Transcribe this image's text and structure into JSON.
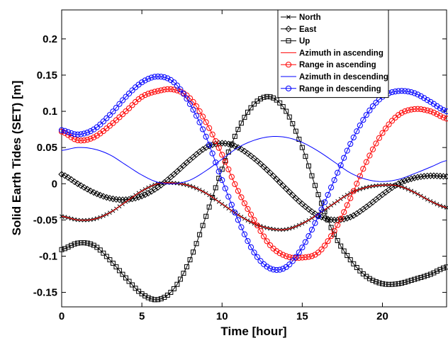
{
  "chart_data": {
    "type": "line",
    "xlabel": "Time [hour]",
    "ylabel": "Solid Earth Tides (SET) [m]",
    "xlim": [
      0,
      24
    ],
    "ylim": [
      -0.17,
      0.24
    ],
    "xticks": [
      0,
      5,
      10,
      15,
      20
    ],
    "yticks": [
      -0.15,
      -0.1,
      -0.05,
      0,
      0.05,
      0.1,
      0.15,
      0.2
    ],
    "grid": false,
    "legend_position": "top-right",
    "series": [
      {
        "name": "North",
        "color": "#000000",
        "marker": "x",
        "x": [
          0,
          1,
          2,
          3,
          4,
          5,
          6,
          7,
          8,
          9,
          10,
          11,
          12,
          13,
          14,
          15,
          16,
          17,
          18,
          19,
          20,
          21,
          22,
          23,
          24
        ],
        "y": [
          -0.045,
          -0.05,
          -0.049,
          -0.04,
          -0.025,
          -0.01,
          0.0,
          0.001,
          -0.003,
          -0.013,
          -0.028,
          -0.043,
          -0.055,
          -0.062,
          -0.063,
          -0.055,
          -0.042,
          -0.027,
          -0.013,
          -0.005,
          -0.002,
          -0.003,
          -0.012,
          -0.024,
          -0.033
        ]
      },
      {
        "name": "East",
        "color": "#000000",
        "marker": "diamond",
        "x": [
          0,
          1,
          2,
          3,
          4,
          5,
          6,
          7,
          8,
          9,
          10,
          11,
          12,
          13,
          14,
          15,
          16,
          17,
          18,
          19,
          20,
          21,
          22,
          23,
          24
        ],
        "y": [
          0.013,
          0.0,
          -0.012,
          -0.02,
          -0.022,
          -0.017,
          -0.005,
          0.013,
          0.033,
          0.05,
          0.056,
          0.05,
          0.035,
          0.015,
          -0.007,
          -0.028,
          -0.044,
          -0.05,
          -0.046,
          -0.032,
          -0.015,
          0.0,
          0.008,
          0.011,
          0.01
        ]
      },
      {
        "name": "Up",
        "color": "#000000",
        "marker": "square",
        "x": [
          0,
          1,
          2,
          3,
          4,
          5,
          6,
          7,
          8,
          9,
          10,
          11,
          12,
          13,
          14,
          15,
          16,
          17,
          18,
          19,
          20,
          21,
          22,
          23,
          24
        ],
        "y": [
          -0.091,
          -0.082,
          -0.085,
          -0.105,
          -0.13,
          -0.152,
          -0.16,
          -0.145,
          -0.105,
          -0.045,
          0.02,
          0.075,
          0.11,
          0.12,
          0.1,
          0.05,
          -0.015,
          -0.07,
          -0.105,
          -0.128,
          -0.138,
          -0.138,
          -0.132,
          -0.125,
          -0.115
        ]
      },
      {
        "name": "Azimuth in ascending",
        "color": "#ff0000",
        "marker": "none",
        "x": [
          0,
          1,
          2,
          3,
          4,
          5,
          6,
          7,
          8,
          9,
          10,
          11,
          12,
          13,
          14,
          15,
          16,
          17,
          18,
          19,
          20,
          21,
          22,
          23,
          24
        ],
        "y": [
          -0.045,
          -0.05,
          -0.049,
          -0.04,
          -0.025,
          -0.01,
          0.0,
          0.001,
          -0.003,
          -0.013,
          -0.028,
          -0.043,
          -0.055,
          -0.062,
          -0.063,
          -0.055,
          -0.042,
          -0.027,
          -0.013,
          -0.005,
          -0.002,
          -0.003,
          -0.012,
          -0.024,
          -0.033
        ]
      },
      {
        "name": "Range in ascending",
        "color": "#ff0000",
        "marker": "circle",
        "x": [
          0,
          1,
          2,
          3,
          4,
          5,
          6,
          7,
          8,
          9,
          10,
          11,
          12,
          13,
          14,
          15,
          16,
          17,
          18,
          19,
          20,
          21,
          22,
          23,
          24
        ],
        "y": [
          0.072,
          0.06,
          0.064,
          0.08,
          0.1,
          0.12,
          0.128,
          0.13,
          0.118,
          0.085,
          0.04,
          -0.01,
          -0.05,
          -0.085,
          -0.1,
          -0.102,
          -0.095,
          -0.065,
          -0.02,
          0.03,
          0.07,
          0.095,
          0.103,
          0.1,
          0.09
        ]
      },
      {
        "name": "Azimuth in descending",
        "color": "#0000ff",
        "marker": "none",
        "x": [
          0,
          1,
          2,
          3,
          4,
          5,
          6,
          7,
          8,
          9,
          10,
          11,
          12,
          13,
          14,
          15,
          16,
          17,
          18,
          19,
          20,
          21,
          22,
          23,
          24
        ],
        "y": [
          0.046,
          0.05,
          0.048,
          0.04,
          0.026,
          0.012,
          0.002,
          0.0,
          0.005,
          0.018,
          0.034,
          0.05,
          0.06,
          0.065,
          0.064,
          0.057,
          0.045,
          0.03,
          0.015,
          0.006,
          0.003,
          0.006,
          0.014,
          0.023,
          0.032
        ]
      },
      {
        "name": "Range in descending",
        "color": "#0000ff",
        "marker": "circle",
        "x": [
          0,
          1,
          2,
          3,
          4,
          5,
          6,
          7,
          8,
          9,
          10,
          11,
          12,
          13,
          14,
          15,
          16,
          17,
          18,
          19,
          20,
          21,
          22,
          23,
          24
        ],
        "y": [
          0.074,
          0.068,
          0.075,
          0.095,
          0.12,
          0.14,
          0.148,
          0.14,
          0.11,
          0.065,
          0.005,
          -0.05,
          -0.095,
          -0.117,
          -0.115,
          -0.088,
          -0.045,
          0.005,
          0.055,
          0.095,
          0.12,
          0.128,
          0.125,
          0.113,
          0.1
        ]
      }
    ]
  }
}
